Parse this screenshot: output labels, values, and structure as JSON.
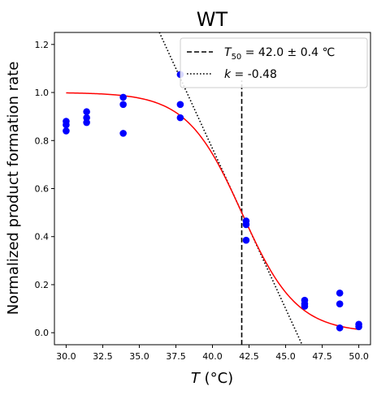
{
  "chart_data": {
    "type": "scatter",
    "title": "WT",
    "xlabel_var": "T",
    "xlabel_unit": " (°C)",
    "ylabel": "Normalized product formation rate",
    "xlim": [
      29.2,
      50.8
    ],
    "ylim": [
      -0.05,
      1.25
    ],
    "x_ticks": [
      30.0,
      32.5,
      35.0,
      37.5,
      40.0,
      42.5,
      45.0,
      47.5,
      50.0
    ],
    "x_tick_labels": [
      "30.0",
      "32.5",
      "35.0",
      "37.5",
      "40.0",
      "42.5",
      "45.0",
      "47.5",
      "50.0"
    ],
    "y_ticks": [
      0.0,
      0.2,
      0.4,
      0.6,
      0.8,
      1.0,
      1.2
    ],
    "y_tick_labels": [
      "0.0",
      "0.2",
      "0.4",
      "0.6",
      "0.8",
      "1.0",
      "1.2"
    ],
    "grid": false,
    "legend_position": "top-right",
    "colors": {
      "points": "#0000ff",
      "fit": "#ff0000",
      "t50_line": "#000000",
      "slope_line": "#000000"
    },
    "points": [
      {
        "x": 30.0,
        "y": 0.88
      },
      {
        "x": 30.0,
        "y": 0.865
      },
      {
        "x": 30.0,
        "y": 0.84
      },
      {
        "x": 31.4,
        "y": 0.92
      },
      {
        "x": 31.4,
        "y": 0.895
      },
      {
        "x": 31.4,
        "y": 0.875
      },
      {
        "x": 33.9,
        "y": 0.98
      },
      {
        "x": 33.9,
        "y": 0.95
      },
      {
        "x": 33.9,
        "y": 0.83
      },
      {
        "x": 37.8,
        "y": 1.075
      },
      {
        "x": 37.8,
        "y": 0.95
      },
      {
        "x": 37.8,
        "y": 0.895
      },
      {
        "x": 42.3,
        "y": 0.465
      },
      {
        "x": 42.3,
        "y": 0.45
      },
      {
        "x": 42.3,
        "y": 0.385
      },
      {
        "x": 46.3,
        "y": 0.135
      },
      {
        "x": 46.3,
        "y": 0.12
      },
      {
        "x": 46.3,
        "y": 0.11
      },
      {
        "x": 48.7,
        "y": 0.165
      },
      {
        "x": 48.7,
        "y": 0.12
      },
      {
        "x": 48.7,
        "y": 0.02
      },
      {
        "x": 50.0,
        "y": 0.035
      },
      {
        "x": 50.0,
        "y": 0.025
      }
    ],
    "fit": {
      "type": "sigmoid",
      "T50": 42.0,
      "slope_k": -0.48,
      "top": 1.0,
      "bottom": 0.0,
      "x_range": [
        30.0,
        50.0
      ]
    },
    "t50_line": {
      "x": 42.0,
      "y_range": [
        -0.05,
        1.05
      ]
    },
    "slope_line": {
      "x0": 42.0,
      "y0": 0.5,
      "slope": -0.1333,
      "x_range": [
        36.0,
        46.6
      ]
    },
    "legend": [
      {
        "style": "dashed",
        "prefix": "T",
        "subscript": "50",
        "text": " = 42.0 ± 0.4 ℃"
      },
      {
        "style": "dotted",
        "prefix": "k",
        "subscript": "",
        "text": " = -0.48"
      }
    ]
  }
}
